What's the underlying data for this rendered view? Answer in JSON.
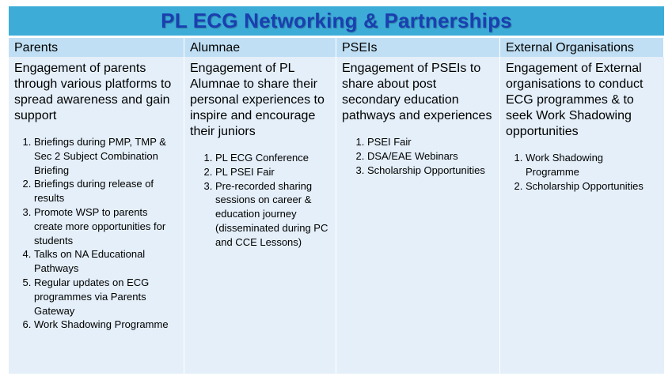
{
  "title": "PL ECG Networking & Partnerships",
  "columns": [
    {
      "header": "Parents",
      "intro": "Engagement of parents through various platforms to spread awareness and gain support",
      "items": [
        "Briefings during PMP, TMP & Sec 2 Subject Combination Briefing",
        "Briefings during release of results",
        "Promote WSP to parents create more opportunities for students",
        "Talks on NA Educational Pathways",
        "Regular updates on ECG programmes via Parents Gateway",
        "Work Shadowing Programme"
      ]
    },
    {
      "header": "Alumnae",
      "intro": "Engagement of PL Alumnae to share their personal experiences to inspire and encourage their juniors",
      "items": [
        "PL ECG Conference",
        "PL PSEI Fair",
        "Pre-recorded sharing sessions on career & education journey (disseminated during PC and CCE Lessons)"
      ]
    },
    {
      "header": "PSEIs",
      "intro": "Engagement of PSEIs to share about post secondary education pathways and experiences",
      "items": [
        "PSEI Fair",
        "DSA/EAE Webinars",
        "Scholarship Opportunities"
      ]
    },
    {
      "header": "External Organisations",
      "intro": "Engagement of External organisations to conduct ECG programmes & to seek Work Shadowing opportunities",
      "items": [
        "Work Shadowing Programme",
        "Scholarship Opportunities"
      ]
    }
  ]
}
